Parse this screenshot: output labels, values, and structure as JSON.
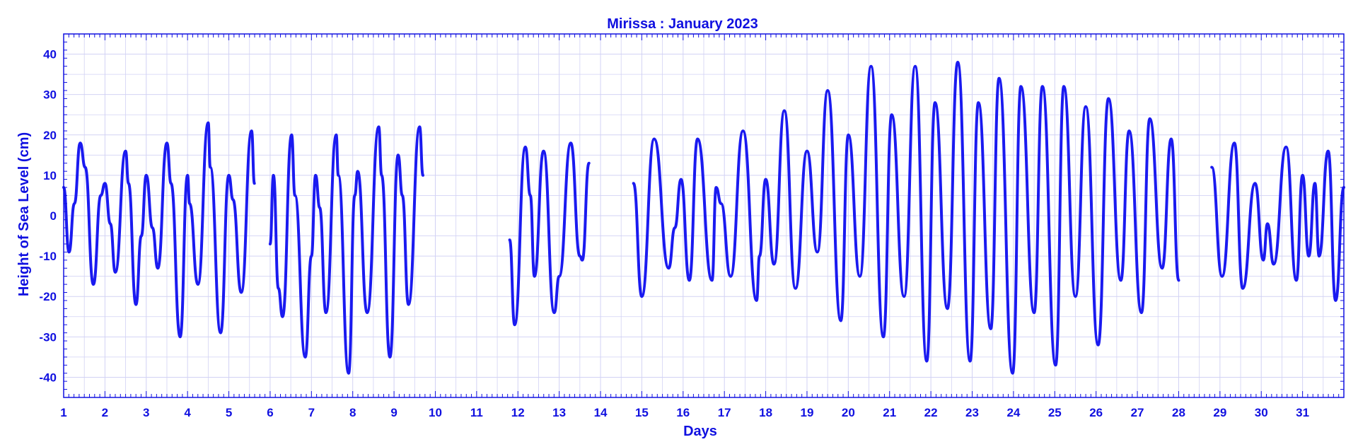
{
  "chart_data": {
    "type": "line",
    "title": "Mirissa : January  2023",
    "xlabel": "Days",
    "ylabel": "Height of Sea Level (cm)",
    "xlim": [
      1,
      32
    ],
    "ylim": [
      -45,
      45
    ],
    "x_ticks": [
      1,
      2,
      3,
      4,
      5,
      6,
      7,
      8,
      9,
      10,
      11,
      12,
      13,
      14,
      15,
      16,
      17,
      18,
      19,
      20,
      21,
      22,
      23,
      24,
      25,
      26,
      27,
      28,
      29,
      30,
      31
    ],
    "y_ticks": [
      -40,
      -30,
      -20,
      -10,
      0,
      10,
      20,
      30,
      40
    ],
    "grid": true,
    "color": "#1a1af0",
    "series": [
      {
        "points": [
          [
            1.0,
            7
          ],
          [
            1.13,
            -9
          ],
          [
            1.26,
            3
          ],
          [
            1.4,
            18
          ],
          [
            1.52,
            12
          ],
          [
            1.72,
            -17
          ],
          [
            1.9,
            5
          ],
          [
            2.0,
            8
          ],
          [
            2.13,
            -2
          ],
          [
            2.25,
            -14
          ],
          [
            2.5,
            16
          ],
          [
            2.57,
            8
          ],
          [
            2.75,
            -22
          ],
          [
            2.88,
            -5
          ],
          [
            3.0,
            10
          ],
          [
            3.15,
            -3
          ],
          [
            3.28,
            -13
          ],
          [
            3.5,
            18
          ],
          [
            3.6,
            8
          ],
          [
            3.82,
            -30
          ],
          [
            4.0,
            10
          ],
          [
            4.05,
            3
          ],
          [
            4.25,
            -17
          ],
          [
            4.5,
            23
          ],
          [
            4.55,
            12
          ],
          [
            4.8,
            -29
          ],
          [
            5.0,
            10
          ],
          [
            5.1,
            4
          ],
          [
            5.3,
            -19
          ],
          [
            5.55,
            21
          ],
          [
            5.62,
            8
          ]
        ]
      },
      {
        "points": [
          [
            6.0,
            -7
          ],
          [
            6.08,
            10
          ],
          [
            6.2,
            -18
          ],
          [
            6.3,
            -25
          ],
          [
            6.52,
            20
          ],
          [
            6.6,
            5
          ],
          [
            6.85,
            -35
          ],
          [
            7.0,
            -10
          ],
          [
            7.1,
            10
          ],
          [
            7.2,
            2
          ],
          [
            7.35,
            -24
          ],
          [
            7.6,
            20
          ],
          [
            7.65,
            10
          ],
          [
            7.9,
            -39
          ],
          [
            8.05,
            5
          ],
          [
            8.12,
            11
          ],
          [
            8.35,
            -24
          ],
          [
            8.63,
            22
          ],
          [
            8.7,
            10
          ],
          [
            8.9,
            -35
          ],
          [
            9.1,
            15
          ],
          [
            9.2,
            5
          ],
          [
            9.35,
            -22
          ],
          [
            9.62,
            22
          ],
          [
            9.7,
            10
          ]
        ]
      },
      {
        "points": [
          [
            11.8,
            -6
          ],
          [
            11.92,
            -27
          ],
          [
            12.18,
            17
          ],
          [
            12.3,
            5
          ],
          [
            12.4,
            -15
          ],
          [
            12.62,
            16
          ],
          [
            12.88,
            -24
          ],
          [
            13.0,
            -15
          ],
          [
            13.28,
            18
          ],
          [
            13.5,
            -10
          ],
          [
            13.56,
            -11
          ],
          [
            13.72,
            13
          ]
        ]
      },
      {
        "points": [
          [
            14.8,
            8
          ],
          [
            15.0,
            -20
          ],
          [
            15.3,
            19
          ],
          [
            15.65,
            -13
          ],
          [
            15.8,
            -3
          ],
          [
            15.95,
            9
          ],
          [
            16.15,
            -16
          ],
          [
            16.35,
            19
          ],
          [
            16.7,
            -16
          ],
          [
            16.8,
            7
          ],
          [
            16.92,
            3
          ],
          [
            17.15,
            -15
          ],
          [
            17.45,
            21
          ],
          [
            17.78,
            -21
          ],
          [
            17.85,
            -10
          ],
          [
            18.0,
            9
          ],
          [
            18.2,
            -12
          ],
          [
            18.45,
            26
          ],
          [
            18.72,
            -18
          ],
          [
            19.0,
            16
          ],
          [
            19.25,
            -9
          ],
          [
            19.5,
            31
          ],
          [
            19.82,
            -26
          ],
          [
            20.0,
            20
          ],
          [
            20.28,
            -15
          ],
          [
            20.55,
            37
          ],
          [
            20.85,
            -30
          ],
          [
            21.05,
            25
          ],
          [
            21.35,
            -20
          ],
          [
            21.62,
            37
          ],
          [
            21.9,
            -36
          ],
          [
            22.1,
            28
          ],
          [
            22.4,
            -23
          ],
          [
            22.65,
            38
          ],
          [
            22.95,
            -36
          ],
          [
            23.15,
            28
          ],
          [
            23.45,
            -28
          ],
          [
            23.65,
            34
          ],
          [
            23.98,
            -39
          ],
          [
            24.18,
            32
          ],
          [
            24.5,
            -24
          ],
          [
            24.7,
            32
          ],
          [
            25.02,
            -37
          ],
          [
            25.22,
            32
          ],
          [
            25.5,
            -20
          ],
          [
            25.75,
            27
          ],
          [
            26.05,
            -32
          ],
          [
            26.3,
            29
          ],
          [
            26.6,
            -16
          ],
          [
            26.8,
            21
          ],
          [
            27.1,
            -24
          ],
          [
            27.3,
            24
          ],
          [
            27.6,
            -13
          ],
          [
            27.82,
            19
          ],
          [
            28.0,
            -16
          ]
        ]
      },
      {
        "points": [
          [
            28.8,
            12
          ],
          [
            29.05,
            -15
          ],
          [
            29.35,
            18
          ],
          [
            29.55,
            -18
          ],
          [
            29.85,
            8
          ],
          [
            30.05,
            -11
          ],
          [
            30.15,
            -2
          ],
          [
            30.3,
            -12
          ],
          [
            30.6,
            17
          ],
          [
            30.85,
            -16
          ],
          [
            31.0,
            10
          ],
          [
            31.15,
            -10
          ],
          [
            31.3,
            8
          ],
          [
            31.4,
            -10
          ],
          [
            31.62,
            16
          ],
          [
            31.8,
            -21
          ],
          [
            32.0,
            7
          ]
        ]
      }
    ]
  }
}
